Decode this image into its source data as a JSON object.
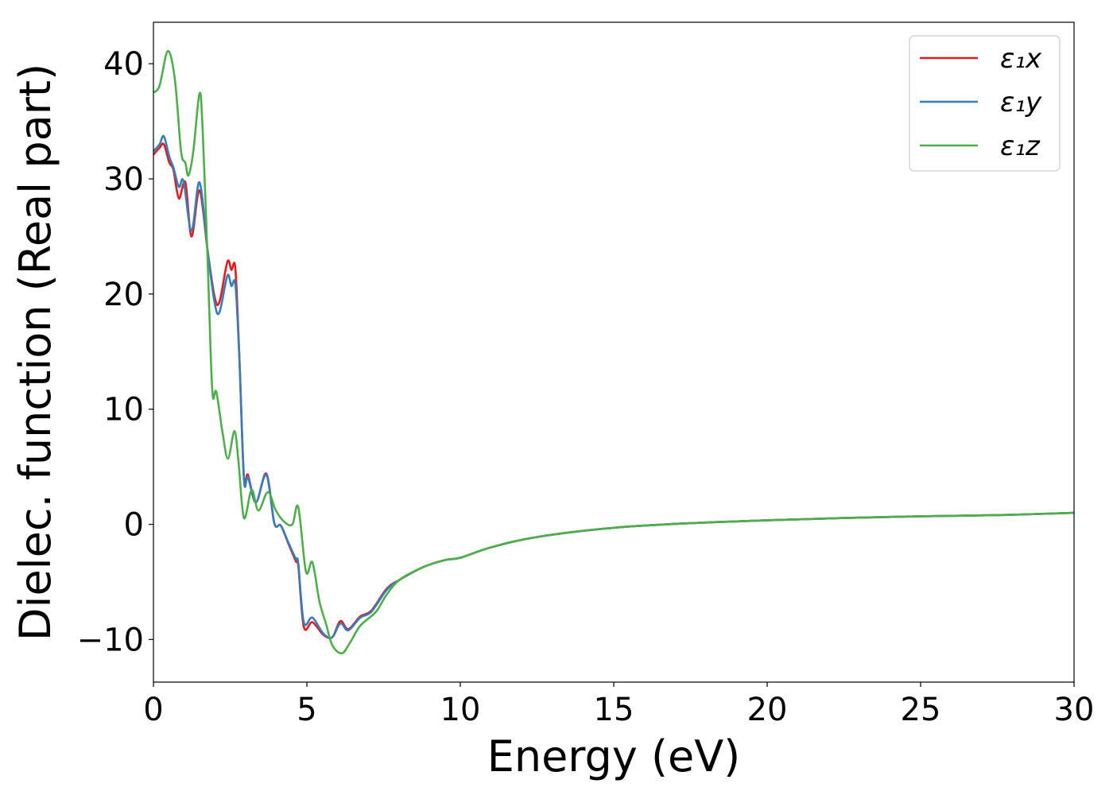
{
  "chart_data": {
    "type": "line",
    "title": "",
    "xlabel": "Energy (eV)",
    "ylabel": "Dielec. function (Real part)",
    "xlim": [
      0,
      30
    ],
    "ylim": [
      -13.7,
      43.6
    ],
    "xticks": [
      0,
      5,
      10,
      15,
      20,
      25,
      30
    ],
    "xtick_labels": [
      "0",
      "5",
      "10",
      "15",
      "20",
      "25",
      "30"
    ],
    "yticks": [
      -10,
      0,
      10,
      20,
      30,
      40
    ],
    "ytick_labels": [
      "−10",
      "0",
      "10",
      "20",
      "30",
      "40"
    ],
    "grid": false,
    "legend_position": "top-right",
    "series": [
      {
        "name": "ε₁x",
        "color": "#e41a1c",
        "points": [
          [
            0,
            32.1
          ],
          [
            0.2,
            32.7
          ],
          [
            0.34,
            33.0
          ],
          [
            0.52,
            31.4
          ],
          [
            0.65,
            30.8
          ],
          [
            0.83,
            28.3
          ],
          [
            1.04,
            29.7
          ],
          [
            1.24,
            25.0
          ],
          [
            1.5,
            29.0
          ],
          [
            1.76,
            23.9
          ],
          [
            1.99,
            19.8
          ],
          [
            2.15,
            19.3
          ],
          [
            2.41,
            22.8
          ],
          [
            2.54,
            22.1
          ],
          [
            2.67,
            22.2
          ],
          [
            2.8,
            14.5
          ],
          [
            2.95,
            4.1
          ],
          [
            3.08,
            4.3
          ],
          [
            3.34,
            1.9
          ],
          [
            3.68,
            4.4
          ],
          [
            3.94,
            0.1
          ],
          [
            4.15,
            -0.1
          ],
          [
            4.4,
            -1.7
          ],
          [
            4.64,
            -3.2
          ],
          [
            4.72,
            -3.6
          ],
          [
            4.9,
            -8.9
          ],
          [
            5.18,
            -8.5
          ],
          [
            5.54,
            -9.6
          ],
          [
            5.83,
            -9.8
          ],
          [
            6.09,
            -8.4
          ],
          [
            6.35,
            -9.1
          ],
          [
            6.74,
            -8.0
          ],
          [
            7.1,
            -7.5
          ],
          [
            7.6,
            -5.6
          ],
          [
            8.03,
            -4.8
          ],
          [
            8.8,
            -3.7
          ],
          [
            9.5,
            -3.1
          ],
          [
            10,
            -2.9
          ],
          [
            11,
            -2.0
          ],
          [
            12.5,
            -1.1
          ],
          [
            15,
            -0.3
          ],
          [
            17.5,
            0.1
          ],
          [
            20,
            0.35
          ],
          [
            22.5,
            0.55
          ],
          [
            25,
            0.7
          ],
          [
            27.5,
            0.8
          ],
          [
            30,
            1.0
          ]
        ]
      },
      {
        "name": "ε₁y",
        "color": "#377eb8",
        "points": [
          [
            0,
            32.4
          ],
          [
            0.2,
            33.0
          ],
          [
            0.34,
            33.7
          ],
          [
            0.52,
            31.9
          ],
          [
            0.65,
            31.0
          ],
          [
            0.83,
            29.3
          ],
          [
            0.98,
            29.8
          ],
          [
            1.24,
            25.5
          ],
          [
            1.5,
            29.7
          ],
          [
            1.76,
            23.9
          ],
          [
            1.99,
            19.3
          ],
          [
            2.15,
            18.4
          ],
          [
            2.41,
            21.6
          ],
          [
            2.54,
            20.7
          ],
          [
            2.67,
            20.8
          ],
          [
            2.8,
            14.5
          ],
          [
            2.95,
            3.9
          ],
          [
            3.08,
            4.1
          ],
          [
            3.34,
            1.9
          ],
          [
            3.68,
            4.3
          ],
          [
            3.94,
            0.1
          ],
          [
            4.15,
            -0.1
          ],
          [
            4.4,
            -1.6
          ],
          [
            4.64,
            -3.0
          ],
          [
            4.72,
            -3.4
          ],
          [
            4.9,
            -8.5
          ],
          [
            5.18,
            -8.1
          ],
          [
            5.54,
            -9.5
          ],
          [
            5.83,
            -9.8
          ],
          [
            6.09,
            -8.6
          ],
          [
            6.35,
            -9.2
          ],
          [
            6.74,
            -8.1
          ],
          [
            7.1,
            -7.6
          ],
          [
            7.6,
            -5.7
          ],
          [
            8.03,
            -4.8
          ],
          [
            8.8,
            -3.7
          ],
          [
            9.5,
            -3.1
          ],
          [
            10,
            -2.9
          ],
          [
            11,
            -2.0
          ],
          [
            12.5,
            -1.1
          ],
          [
            15,
            -0.3
          ],
          [
            17.5,
            0.1
          ],
          [
            20,
            0.35
          ],
          [
            22.5,
            0.55
          ],
          [
            25,
            0.7
          ],
          [
            27.5,
            0.8
          ],
          [
            30,
            1.0
          ]
        ]
      },
      {
        "name": "ε₁z",
        "color": "#4daf4a",
        "points": [
          [
            0,
            37.5
          ],
          [
            0.2,
            38.1
          ],
          [
            0.47,
            41.1
          ],
          [
            0.7,
            38.6
          ],
          [
            0.9,
            32.4
          ],
          [
            1.04,
            31.4
          ],
          [
            1.14,
            30.3
          ],
          [
            1.3,
            32.4
          ],
          [
            1.5,
            37.4
          ],
          [
            1.6,
            34.5
          ],
          [
            1.76,
            23.4
          ],
          [
            1.87,
            14.5
          ],
          [
            1.94,
            11.0
          ],
          [
            2.05,
            11.5
          ],
          [
            2.25,
            8.0
          ],
          [
            2.43,
            5.7
          ],
          [
            2.64,
            8.1
          ],
          [
            2.77,
            5.5
          ],
          [
            2.95,
            0.55
          ],
          [
            3.2,
            3.0
          ],
          [
            3.42,
            1.2
          ],
          [
            3.73,
            2.8
          ],
          [
            3.99,
            1.2
          ],
          [
            4.27,
            0.2
          ],
          [
            4.53,
            0.0
          ],
          [
            4.72,
            1.5
          ],
          [
            4.97,
            -4.1
          ],
          [
            5.18,
            -3.3
          ],
          [
            5.41,
            -6.7
          ],
          [
            5.62,
            -8.6
          ],
          [
            5.83,
            -10.5
          ],
          [
            6.14,
            -11.2
          ],
          [
            6.4,
            -10.3
          ],
          [
            6.74,
            -8.8
          ],
          [
            7.25,
            -7.6
          ],
          [
            7.6,
            -6.1
          ],
          [
            8.03,
            -4.8
          ],
          [
            8.8,
            -3.7
          ],
          [
            9.5,
            -3.1
          ],
          [
            10,
            -2.9
          ],
          [
            11,
            -2.0
          ],
          [
            12.5,
            -1.1
          ],
          [
            15,
            -0.3
          ],
          [
            17.5,
            0.1
          ],
          [
            20,
            0.35
          ],
          [
            22.5,
            0.55
          ],
          [
            25,
            0.7
          ],
          [
            27.5,
            0.8
          ],
          [
            30,
            1.0
          ]
        ]
      }
    ]
  }
}
